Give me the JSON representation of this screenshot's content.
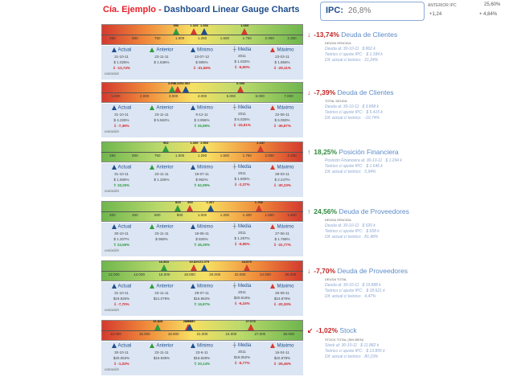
{
  "title": {
    "company": "Cía. Ejemplo - ",
    "name": "Dashboard Linear Gauge Charts"
  },
  "ipc": {
    "label": "IPC:",
    "value": "26,8%",
    "aux_label": "ANTERIOR IPC",
    "aux_val": "25,60%",
    "d1": "+1,24",
    "d2": "+ 4,84%"
  },
  "colors": {
    "red": "#d43a2f",
    "green": "#6fb64e",
    "blue": "#1f4e8c",
    "accent_pos": "#2e8a3e",
    "accent_neg": "#c42323"
  },
  "legend_headers": {
    "actual": "Actual",
    "anterior": "Anterior",
    "minimo": "Mínimo",
    "media": "Media",
    "maximo": "Máximo"
  },
  "variacion_label": "variación",
  "panels": [
    {
      "gradient": "grad-std",
      "ticks": [
        "250",
        "500",
        "750",
        "1.000",
        "1.250",
        "1.500",
        "1.750",
        "2.000",
        "2.250"
      ],
      "marker_labels": {
        "a": "956",
        "b": "1.325",
        "c": "1.536",
        "d": "1.669"
      },
      "dates": [
        "31-10-11",
        "23-11-11",
        "23-07-12",
        "2011",
        "23-03-11"
      ],
      "vals": [
        "$ 1.025%",
        "$ 1.536%",
        "$ 906%",
        "$ 1.033%",
        "$ 1.866%"
      ],
      "vars": [
        "-13,74%",
        "",
        "-31,56%",
        "-6,50%",
        "-29,11%"
      ],
      "var_signs": [
        "neg",
        "",
        "neg",
        "neg",
        "neg"
      ],
      "info": {
        "arrow": "↓",
        "pct": "-13,74%",
        "pct_sign": "neg",
        "name": "Deuda de Clientes",
        "sub": "DEUDA VENCIDA",
        "lines": [
          [
            "Deuda al:  30-10-11",
            "$ 862 k"
          ],
          [
            "Teórico c/ ajuste IPC:",
            "$ 1.184 k"
          ],
          [
            "Dif. actual c/ teórico:",
            "21,24%"
          ]
        ]
      }
    },
    {
      "gradient": "grad-std",
      "ticks": [
        "1.000",
        "2.000",
        "3.000",
        "4.000",
        "5.000",
        "6.000",
        "7.000"
      ],
      "marker_labels": {
        "a": "3.956",
        "b": "4.225",
        "c": "4.562",
        "d": "6.093"
      },
      "dates": [
        "31-10-11",
        "23-11-11",
        "9-12-11",
        "2011",
        "22-06-11"
      ],
      "vals": [
        "$ 4.225%",
        "$ 5.562%",
        "$ 3.956%",
        "$ 5.025%",
        "$ 6.093%"
      ],
      "vars": [
        "-7,39%",
        "",
        "25,89%",
        "-15,91%",
        "-36,87%"
      ],
      "var_signs": [
        "neg",
        "",
        "pos",
        "neg",
        "neg"
      ],
      "info": {
        "arrow": "↓",
        "pct": "-7,39%",
        "pct_sign": "neg",
        "name": "Deuda de Clientes",
        "sub": "TOTAL DEUDA",
        "lines": [
          [
            "Deuda al:  30-10-11",
            "$ 3.898 k"
          ],
          [
            "Teórico c/ ajuste IPC:",
            "$ 5.415 k"
          ],
          [
            "Dif. actual c/ teórico:",
            "-10,74%"
          ]
        ]
      }
    },
    {
      "gradient": "grad-rev",
      "ticks": [
        "250",
        "500",
        "750",
        "1.000",
        "1.250",
        "1.500",
        "1.750",
        "2.000",
        "2.250"
      ],
      "marker_labels": {
        "a": "962",
        "b": "1.326",
        "c": "1.566",
        "d": "2.247"
      },
      "dates": [
        "31-10-11",
        "23-11-11",
        "19-07-11",
        "2011",
        "28-03-11"
      ],
      "vals": [
        "$ 1.565%",
        "$ 1.326%",
        "$ 962%",
        "$ 1.605%",
        "$ 2.247%"
      ],
      "vars": [
        "18,25%",
        "",
        "62,99%",
        "-2,37%",
        "-30,23%"
      ],
      "var_signs": [
        "pos",
        "",
        "pos",
        "neg",
        "neg"
      ],
      "info": {
        "arrow": "↑",
        "pct": "18,25%",
        "pct_sign": "pos",
        "name": "Posición Financiera",
        "sub": "",
        "lines": [
          [
            "Posición Financiera al:  30-10-11",
            "$ 1.294 k"
          ],
          [
            "Teórico c/ ajuste IPC:",
            "$ 1.646 k"
          ],
          [
            "Dif. actual c/ teórico:",
            "5,94%"
          ]
        ]
      }
    },
    {
      "gradient": "grad-rev",
      "ticks": [
        "200",
        "400",
        "600",
        "800",
        "1.000",
        "1.200",
        "1.400",
        "1.600",
        "1.800"
      ],
      "marker_labels": {
        "a": "825",
        "b": "969",
        "c": "1.207",
        "d": "1.768"
      },
      "dates": [
        "30-10-11",
        "23-11-11",
        "19-06-11",
        "2011",
        "27-06-11"
      ],
      "vals": [
        "$ 1.207%",
        "$ 969%",
        "$ 825%",
        "$ 1.297%",
        "$ 1.768%"
      ],
      "vars": [
        "24,56%",
        "",
        "46,30%",
        "-6,96%",
        "-31,77%"
      ],
      "var_signs": [
        "pos",
        "",
        "pos",
        "neg",
        "neg"
      ],
      "info": {
        "arrow": "↑",
        "pct": "24,56%",
        "pct_sign": "pos",
        "name": "Deuda de Proveedores",
        "sub": "DEUDA VENCIDA",
        "lines": [
          [
            "Deuda al:  30-10-11",
            "$ 520 k"
          ],
          [
            "Teórico c/ ajuste IPC:",
            "$ 658 k"
          ],
          [
            "Dif. actual c/ teórico:",
            "81,48%"
          ]
        ]
      }
    },
    {
      "gradient": "grad-rev",
      "ticks": [
        "12.000",
        "14.000",
        "16.000",
        "18.000",
        "20.000",
        "22.000",
        "24.000",
        "26.000"
      ],
      "marker_labels": {
        "a": "16.863",
        "b": "19.829",
        "c": "21.079",
        "d": "24.879"
      },
      "dates": [
        "31-10-11",
        "23-11-11",
        "29-07-11",
        "2011",
        "26-09-11"
      ],
      "vals": [
        "$19.825%",
        "$21.079%",
        "$16.863%",
        "$20.919%",
        "$24.879%"
      ],
      "vars": [
        "-7,70%",
        "",
        "16,87%",
        "-6,24%",
        "-20,30%"
      ],
      "var_signs": [
        "neg",
        "",
        "pos",
        "neg",
        "neg"
      ],
      "info": {
        "arrow": "↓",
        "pct": "-7,70%",
        "pct_sign": "neg",
        "name": "Deuda de Proveedores",
        "sub": "DEUDA TOTAL",
        "lines": [
          [
            "Deuda al:  30-10-11",
            "$ 19.888 k"
          ],
          [
            "Teórico c/ ajuste IPC:",
            "$ 18.621 k"
          ],
          [
            "Dif. actual c/ teórico:",
            "4,47%"
          ]
        ]
      }
    },
    {
      "gradient": "grad-std",
      "ticks": [
        "12.000",
        "15.000",
        "18.000",
        "21.000",
        "24.000",
        "27.000",
        "30.000"
      ],
      "marker_labels": {
        "a": "16.828",
        "b": "20.063",
        "c": "20.370",
        "d": "27.676"
      },
      "dates": [
        "30-10-11",
        "23-11-11",
        "23-6-11",
        "2011",
        "16-04-11"
      ],
      "vals": [
        "$20.063%",
        "$16.939%",
        "$16.828%",
        "$18.052%",
        "$22.879%"
      ],
      "vars": [
        "-1,02%",
        "",
        "20,14%",
        "-6,77%",
        "-26,46%"
      ],
      "var_signs": [
        "neg",
        "",
        "pos",
        "neg",
        "neg"
      ],
      "info": {
        "arrow": "↙",
        "pct": "-1,02%",
        "pct_sign": "neg",
        "name": "Stock",
        "sub": "STOCK TOTAL (SIN BIEN)",
        "lines": [
          [
            "Stock al:  30-10-11",
            "$ 11.882 k"
          ],
          [
            "Teórico c/ ajuste IPC:",
            "$ 13.855 k"
          ],
          [
            "Dif. actual c/ teórico:",
            "80,19%"
          ]
        ]
      }
    }
  ]
}
